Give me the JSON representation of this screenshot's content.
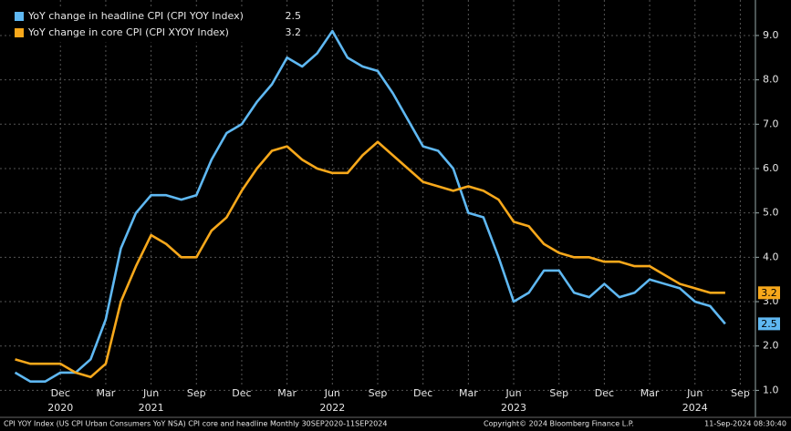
{
  "chart_data": {
    "type": "line",
    "x": [
      "2020-09",
      "2020-10",
      "2020-11",
      "2020-12",
      "2021-01",
      "2021-02",
      "2021-03",
      "2021-04",
      "2021-05",
      "2021-06",
      "2021-07",
      "2021-08",
      "2021-09",
      "2021-10",
      "2021-11",
      "2021-12",
      "2022-01",
      "2022-02",
      "2022-03",
      "2022-04",
      "2022-05",
      "2022-06",
      "2022-07",
      "2022-08",
      "2022-09",
      "2022-10",
      "2022-11",
      "2022-12",
      "2023-01",
      "2023-02",
      "2023-03",
      "2023-04",
      "2023-05",
      "2023-06",
      "2023-07",
      "2023-08",
      "2023-09",
      "2023-10",
      "2023-11",
      "2023-12",
      "2024-01",
      "2024-02",
      "2024-03",
      "2024-04",
      "2024-05",
      "2024-06",
      "2024-07",
      "2024-08"
    ],
    "series": [
      {
        "name": "YoY change in headline CPI (CPI YOY Index)",
        "color": "#5fb8f2",
        "values": [
          1.4,
          1.2,
          1.2,
          1.4,
          1.4,
          1.7,
          2.6,
          4.2,
          5.0,
          5.4,
          5.4,
          5.3,
          5.4,
          6.2,
          6.8,
          7.0,
          7.5,
          7.9,
          8.5,
          8.3,
          8.6,
          9.1,
          8.5,
          8.3,
          8.2,
          7.7,
          7.1,
          6.5,
          6.4,
          6.0,
          5.0,
          4.9,
          4.0,
          3.0,
          3.2,
          3.7,
          3.7,
          3.2,
          3.1,
          3.4,
          3.1,
          3.2,
          3.5,
          3.4,
          3.3,
          3.0,
          2.9,
          2.5
        ]
      },
      {
        "name": "YoY change in core CPI (CPI XYOY Index)",
        "color": "#f7a81b",
        "values": [
          1.7,
          1.6,
          1.6,
          1.6,
          1.4,
          1.3,
          1.6,
          3.0,
          3.8,
          4.5,
          4.3,
          4.0,
          4.0,
          4.6,
          4.9,
          5.5,
          6.0,
          6.4,
          6.5,
          6.2,
          6.0,
          5.9,
          5.9,
          6.3,
          6.6,
          6.3,
          6.0,
          5.7,
          5.6,
          5.5,
          5.6,
          5.5,
          5.3,
          4.8,
          4.7,
          4.3,
          4.1,
          4.0,
          4.0,
          3.9,
          3.9,
          3.8,
          3.8,
          3.6,
          3.4,
          3.3,
          3.2,
          3.2
        ]
      }
    ],
    "xlim": [
      "2020-08",
      "2024-10"
    ],
    "xticks": [
      {
        "value": "2020-12",
        "label": "Dec"
      },
      {
        "value": "2021-03",
        "label": "Mar"
      },
      {
        "value": "2021-06",
        "label": "Jun"
      },
      {
        "value": "2021-09",
        "label": "Sep"
      },
      {
        "value": "2021-12",
        "label": "Dec"
      },
      {
        "value": "2022-03",
        "label": "Mar"
      },
      {
        "value": "2022-06",
        "label": "Jun"
      },
      {
        "value": "2022-09",
        "label": "Sep"
      },
      {
        "value": "2022-12",
        "label": "Dec"
      },
      {
        "value": "2023-03",
        "label": "Mar"
      },
      {
        "value": "2023-06",
        "label": "Jun"
      },
      {
        "value": "2023-09",
        "label": "Sep"
      },
      {
        "value": "2023-12",
        "label": "Dec"
      },
      {
        "value": "2024-03",
        "label": "Mar"
      },
      {
        "value": "2024-06",
        "label": "Jun"
      },
      {
        "value": "2024-09",
        "label": "Sep"
      }
    ],
    "year_labels": [
      {
        "value": "2020-12",
        "label": "2020"
      },
      {
        "value": "2021-06",
        "label": "2021"
      },
      {
        "value": "2022-06",
        "label": "2022"
      },
      {
        "value": "2023-06",
        "label": "2023"
      },
      {
        "value": "2024-06",
        "label": "2024"
      }
    ],
    "ylim": [
      0.7,
      9.8
    ],
    "yticks": [
      {
        "value": 1,
        "label": "1.0"
      },
      {
        "value": 2,
        "label": "2.0"
      },
      {
        "value": 3,
        "label": "3.0"
      },
      {
        "value": 4,
        "label": "4.0"
      },
      {
        "value": 5,
        "label": "5.0"
      },
      {
        "value": 6,
        "label": "6.0"
      },
      {
        "value": 7,
        "label": "7.0"
      },
      {
        "value": 8,
        "label": "8.0"
      },
      {
        "value": 9,
        "label": "9.0"
      }
    ],
    "grid": true,
    "footer": "CPI YOY Index (US CPI Urban Consumers YoY NSA) CPI core and headline  Monthly 30SEP2020-11SEP2024",
    "copyright": "Copyright© 2024 Bloomberg Finance L.P.",
    "timestamp": "11-Sep-2024 08:30:40"
  }
}
